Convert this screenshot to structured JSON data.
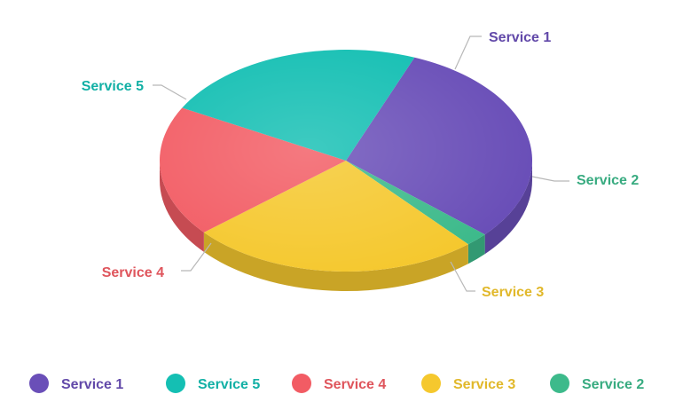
{
  "chart_data": {
    "type": "pie",
    "style": "3d",
    "title": "",
    "legend_position": "bottom",
    "slices": [
      {
        "name": "Service 1",
        "value": 30.6,
        "color": "#6A4FB8"
      },
      {
        "name": "Service 2",
        "value": 2.0,
        "color": "#3DBA8B"
      },
      {
        "name": "Service 3",
        "value": 25.2,
        "color": "#F5C82E"
      },
      {
        "name": "Service 4",
        "value": 19.1,
        "color": "#F25C64"
      },
      {
        "name": "Service 5",
        "value": 23.1,
        "color": "#14BFB3"
      }
    ],
    "legend_order": [
      "Service 1",
      "Service 5",
      "Service 4",
      "Service 3",
      "Service 2"
    ]
  }
}
